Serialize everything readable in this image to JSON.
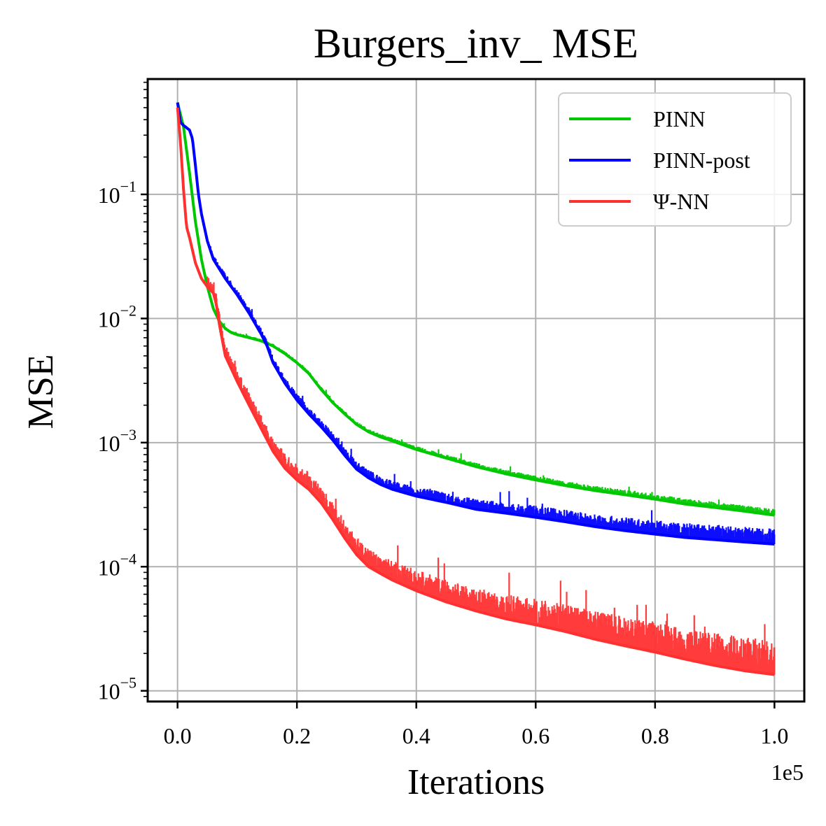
{
  "chart_data": {
    "type": "line",
    "title": "Burgers_inv_ MSE",
    "xlabel": "Iterations",
    "ylabel": "MSE",
    "x_offset_label": "1e5",
    "x_scale": "linear",
    "y_scale": "log",
    "xlim": [
      -0.05,
      1.05
    ],
    "ylim": [
      8.2e-06,
      0.85
    ],
    "x_ticks": [
      0.0,
      0.2,
      0.4,
      0.6,
      0.8,
      1.0
    ],
    "x_tick_labels": [
      "0.0",
      "0.2",
      "0.4",
      "0.6",
      "0.8",
      "1.0"
    ],
    "y_ticks": [
      1e-05,
      0.0001,
      0.001,
      0.01,
      0.1
    ],
    "y_tick_labels": [
      {
        "base": "10",
        "exp": "−5"
      },
      {
        "base": "10",
        "exp": "−4"
      },
      {
        "base": "10",
        "exp": "−3"
      },
      {
        "base": "10",
        "exp": "−2"
      },
      {
        "base": "10",
        "exp": "−1"
      }
    ],
    "grid": true,
    "legend_position": "top-right",
    "series": [
      {
        "name": "PINN",
        "color": "#00c800",
        "noise_band": [
          0.02,
          0.12
        ],
        "x": [
          0.0,
          0.01,
          0.02,
          0.03,
          0.04,
          0.05,
          0.06,
          0.07,
          0.08,
          0.09,
          0.1,
          0.12,
          0.14,
          0.16,
          0.18,
          0.2,
          0.22,
          0.24,
          0.26,
          0.28,
          0.3,
          0.32,
          0.34,
          0.36,
          0.4,
          0.45,
          0.5,
          0.55,
          0.6,
          0.65,
          0.7,
          0.75,
          0.8,
          0.85,
          0.9,
          0.95,
          1.0
        ],
        "y": [
          0.55,
          0.35,
          0.15,
          0.06,
          0.03,
          0.018,
          0.012,
          0.0095,
          0.0083,
          0.0077,
          0.0074,
          0.007,
          0.0066,
          0.006,
          0.0052,
          0.0044,
          0.0036,
          0.0027,
          0.0021,
          0.0017,
          0.0014,
          0.00122,
          0.00111,
          0.00103,
          0.00088,
          0.00075,
          0.00064,
          0.00056,
          0.0005,
          0.00045,
          0.00041,
          0.00038,
          0.00035,
          0.00032,
          0.0003,
          0.00028,
          0.00026
        ]
      },
      {
        "name": "PINN-post",
        "color": "#0000ff",
        "noise_band": [
          0.05,
          0.35
        ],
        "x": [
          0.0,
          0.005,
          0.01,
          0.02,
          0.025,
          0.03,
          0.035,
          0.04,
          0.05,
          0.06,
          0.08,
          0.1,
          0.12,
          0.14,
          0.15,
          0.16,
          0.18,
          0.2,
          0.22,
          0.24,
          0.26,
          0.28,
          0.3,
          0.32,
          0.34,
          0.36,
          0.4,
          0.45,
          0.5,
          0.55,
          0.6,
          0.65,
          0.7,
          0.75,
          0.8,
          0.85,
          0.9,
          0.95,
          1.0
        ],
        "y": [
          0.55,
          0.38,
          0.36,
          0.33,
          0.28,
          0.17,
          0.1,
          0.07,
          0.042,
          0.03,
          0.021,
          0.0155,
          0.011,
          0.0075,
          0.006,
          0.0044,
          0.003,
          0.0022,
          0.0017,
          0.00135,
          0.00105,
          0.00079,
          0.00061,
          0.00052,
          0.00046,
          0.00042,
          0.00037,
          0.00033,
          0.00029,
          0.00027,
          0.00025,
          0.00023,
          0.00021,
          0.000195,
          0.000183,
          0.000172,
          0.000165,
          0.000158,
          0.000152
        ]
      },
      {
        "name": "Ψ-NN",
        "color": "#ff3030",
        "noise_band": [
          0.05,
          0.9
        ],
        "x": [
          0.0,
          0.005,
          0.01,
          0.015,
          0.02,
          0.03,
          0.04,
          0.05,
          0.06,
          0.065,
          0.07,
          0.08,
          0.1,
          0.12,
          0.14,
          0.16,
          0.18,
          0.2,
          0.22,
          0.24,
          0.26,
          0.28,
          0.3,
          0.32,
          0.34,
          0.36,
          0.4,
          0.45,
          0.5,
          0.55,
          0.6,
          0.65,
          0.7,
          0.75,
          0.8,
          0.85,
          0.9,
          0.95,
          1.0
        ],
        "y": [
          0.5,
          0.26,
          0.11,
          0.055,
          0.045,
          0.028,
          0.021,
          0.018,
          0.016,
          0.013,
          0.009,
          0.005,
          0.0031,
          0.002,
          0.0013,
          0.00085,
          0.00062,
          0.0005,
          0.00042,
          0.00033,
          0.00024,
          0.00017,
          0.000125,
          0.0001,
          8.8e-05,
          7.8e-05,
          6.4e-05,
          5.2e-05,
          4.4e-05,
          3.8e-05,
          3.4e-05,
          3e-05,
          2.6e-05,
          2.3e-05,
          2.05e-05,
          1.8e-05,
          1.6e-05,
          1.45e-05,
          1.35e-05
        ]
      }
    ]
  }
}
